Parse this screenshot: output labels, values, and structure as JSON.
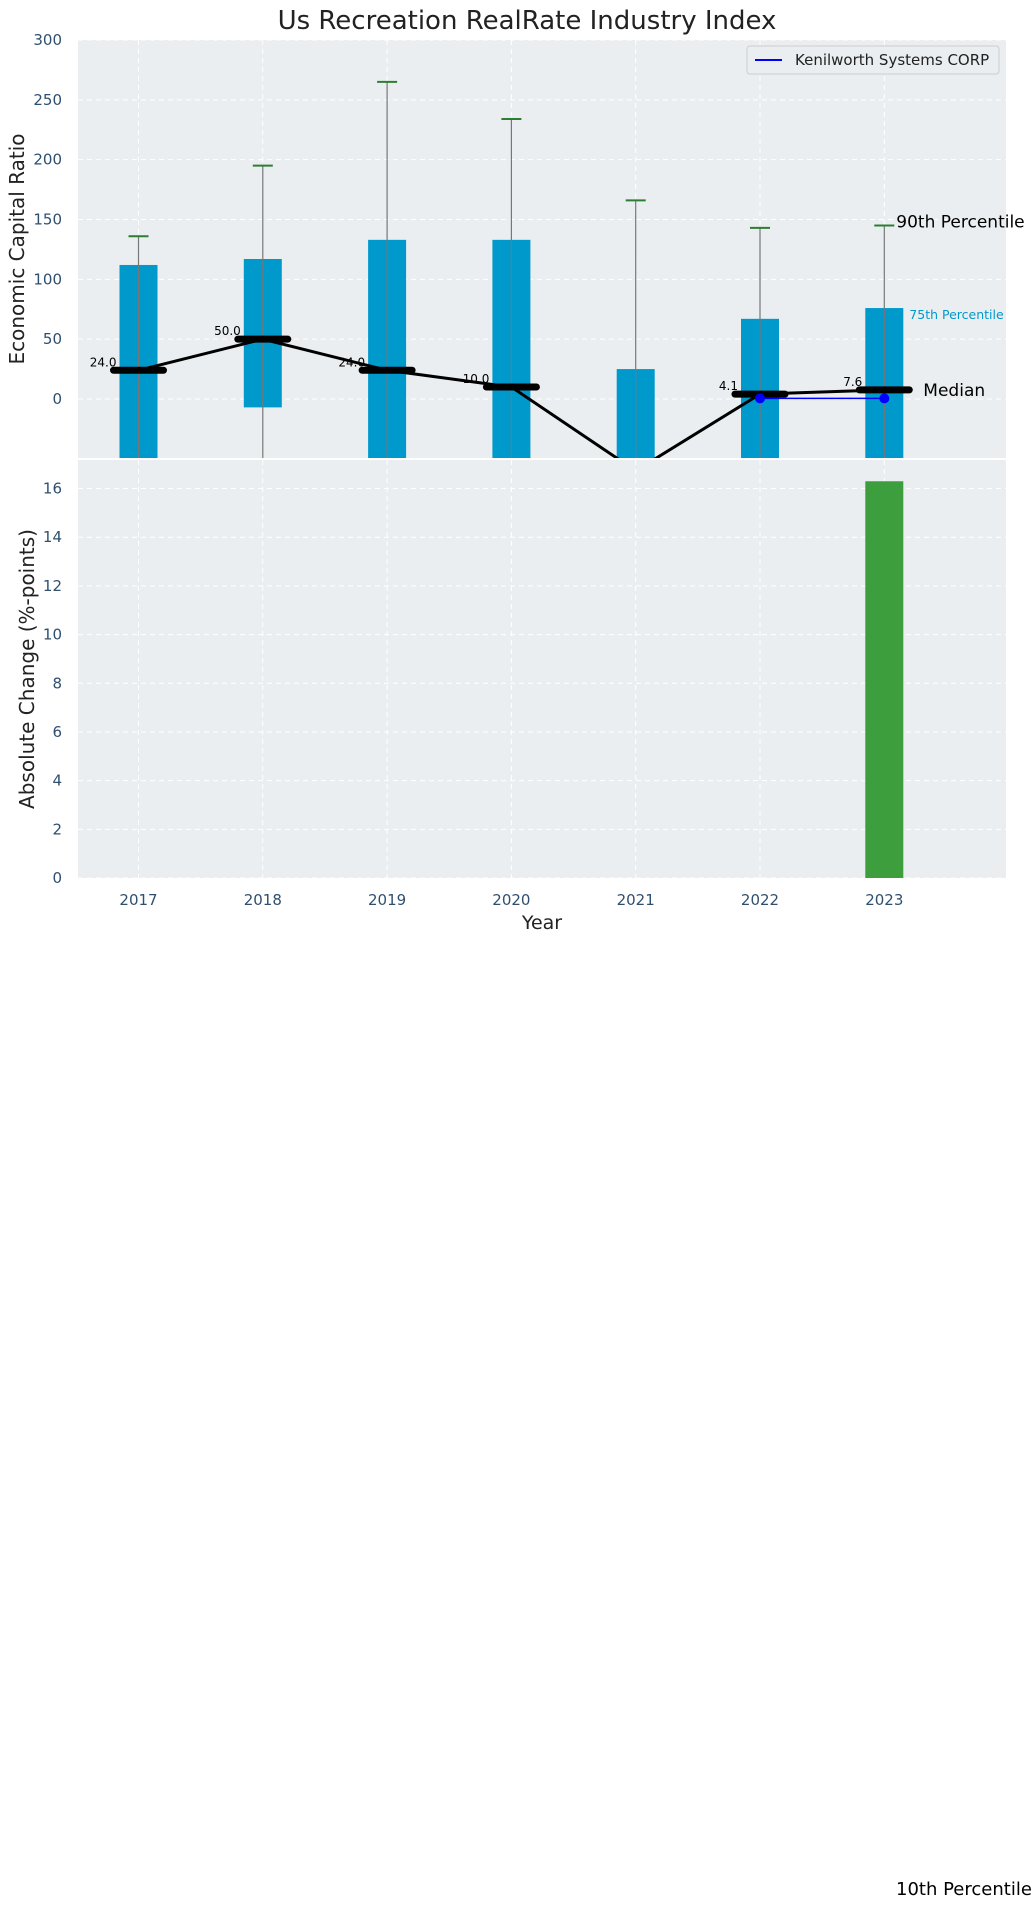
{
  "chart_data": [
    {
      "type": "bar",
      "title": "Us Recreation RealRate Industry Index",
      "xlabel": "",
      "ylabel": "Economic Capital Ratio",
      "ylim": [
        -50,
        300
      ],
      "yticks": [
        0,
        50,
        100,
        150,
        200,
        250,
        300
      ],
      "grid": true,
      "legend": {
        "placement": "top-right",
        "entries": [
          "Kenilworth Systems CORP"
        ]
      },
      "categories": [
        "2017",
        "2018",
        "2019",
        "2020",
        "2021",
        "2022",
        "2023"
      ],
      "percentile_bars": {
        "p25": [
          -50,
          -7,
          -50,
          -50,
          -50,
          -50,
          -50
        ],
        "p75": [
          112,
          117,
          133,
          133,
          25,
          67,
          76
        ]
      },
      "whiskers_p90": [
        136,
        195,
        265,
        234,
        166,
        143,
        145
      ],
      "median": {
        "values": [
          24.0,
          50.0,
          24.0,
          10.0,
          -60,
          4.1,
          7.6
        ],
        "labels": [
          "24.0",
          "50.0",
          "24.0",
          "10.0",
          "",
          "4.1",
          "7.6"
        ]
      },
      "series": [
        {
          "name": "Kenilworth Systems CORP",
          "x": [
            "2022",
            "2023"
          ],
          "values": [
            0.5,
            0.5
          ]
        }
      ],
      "annotations": {
        "p90": "90th Percentile",
        "p75": "75th Percentile",
        "median": "Median",
        "p10": "10th Percentile"
      },
      "colors": {
        "bar": "#0099cc",
        "whisker_cap": "#2e7d32",
        "median": "#000000",
        "company": "#0000ff",
        "panel_bg": "#eaeef0"
      }
    },
    {
      "type": "bar",
      "title": "",
      "xlabel": "Year",
      "ylabel": "Absolute Change (%-points)",
      "ylim": [
        0,
        17
      ],
      "yticks": [
        0,
        2,
        4,
        6,
        8,
        10,
        12,
        14,
        16
      ],
      "grid": true,
      "categories": [
        "2017",
        "2018",
        "2019",
        "2020",
        "2021",
        "2022",
        "2023"
      ],
      "values": [
        null,
        null,
        null,
        null,
        null,
        null,
        16.3
      ],
      "colors": {
        "bar": "#3d9e3d",
        "panel_bg": "#eaeef0"
      }
    }
  ]
}
